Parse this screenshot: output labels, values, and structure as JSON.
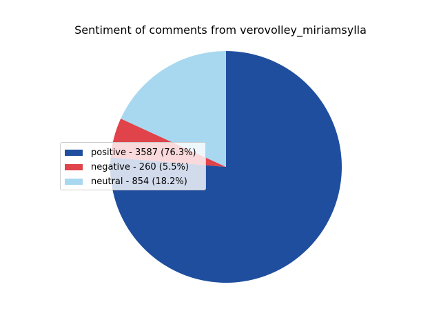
{
  "chart_data": {
    "type": "pie",
    "title": "Sentiment of comments from verovolley_miriamsylla",
    "slices": [
      {
        "label": "positive",
        "value": 3587,
        "percent": 76.3,
        "color": "#1f4e9e",
        "legend": "positive - 3587 (76.3%)"
      },
      {
        "label": "negative",
        "value": 260,
        "percent": 5.5,
        "color": "#e0434a",
        "legend": "negative - 260 (5.5%)"
      },
      {
        "label": "neutral",
        "value": 854,
        "percent": 18.2,
        "color": "#a8d8ef",
        "legend": "neutral - 854 (18.2%)"
      }
    ],
    "start_angle": 90,
    "direction": "clockwise",
    "legend_position": "center-left"
  }
}
